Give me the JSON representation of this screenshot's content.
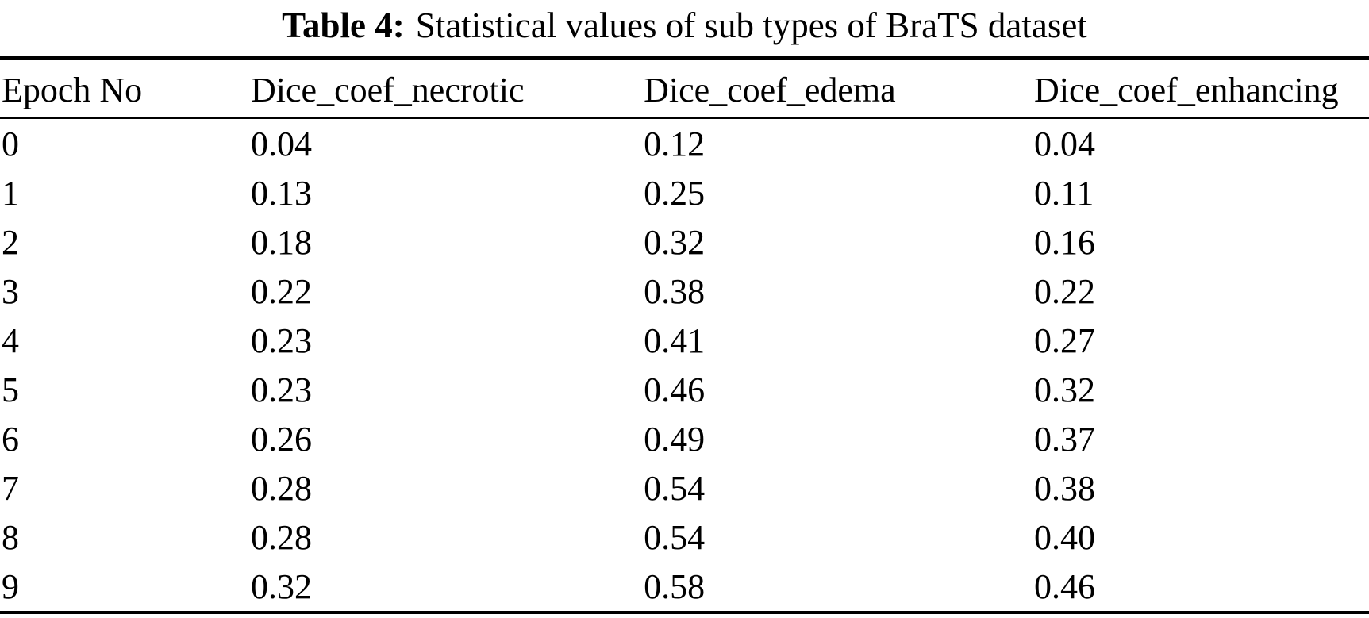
{
  "table": {
    "caption": {
      "label": "Table 4:",
      "text": "Statistical values of sub types of BraTS dataset"
    },
    "columns": [
      "Epoch No",
      "Dice_coef_necrotic",
      "Dice_coef_edema",
      "Dice_coef_enhancing"
    ],
    "rows": [
      [
        "0",
        "0.04",
        "0.12",
        "0.04"
      ],
      [
        "1",
        "0.13",
        "0.25",
        "0.11"
      ],
      [
        "2",
        "0.18",
        "0.32",
        "0.16"
      ],
      [
        "3",
        "0.22",
        "0.38",
        "0.22"
      ],
      [
        "4",
        "0.23",
        "0.41",
        "0.27"
      ],
      [
        "5",
        "0.23",
        "0.46",
        "0.32"
      ],
      [
        "6",
        "0.26",
        "0.49",
        "0.37"
      ],
      [
        "7",
        "0.28",
        "0.54",
        "0.38"
      ],
      [
        "8",
        "0.28",
        "0.54",
        "0.40"
      ],
      [
        "9",
        "0.32",
        "0.58",
        "0.46"
      ]
    ]
  },
  "chart_data": {
    "type": "table",
    "title": "Table 4: Statistical values of sub types of BraTS dataset",
    "columns": [
      "Epoch No",
      "Dice_coef_necrotic",
      "Dice_coef_edema",
      "Dice_coef_enhancing"
    ],
    "x": [
      0,
      1,
      2,
      3,
      4,
      5,
      6,
      7,
      8,
      9
    ],
    "series": [
      {
        "name": "Dice_coef_necrotic",
        "values": [
          0.04,
          0.13,
          0.18,
          0.22,
          0.23,
          0.23,
          0.26,
          0.28,
          0.28,
          0.32
        ]
      },
      {
        "name": "Dice_coef_edema",
        "values": [
          0.12,
          0.25,
          0.32,
          0.38,
          0.41,
          0.46,
          0.49,
          0.54,
          0.54,
          0.58
        ]
      },
      {
        "name": "Dice_coef_enhancing",
        "values": [
          0.04,
          0.11,
          0.16,
          0.22,
          0.27,
          0.32,
          0.37,
          0.38,
          0.4,
          0.46
        ]
      }
    ]
  },
  "colors": {
    "text": "#000000",
    "background": "#ffffff",
    "rule": "#000000"
  }
}
